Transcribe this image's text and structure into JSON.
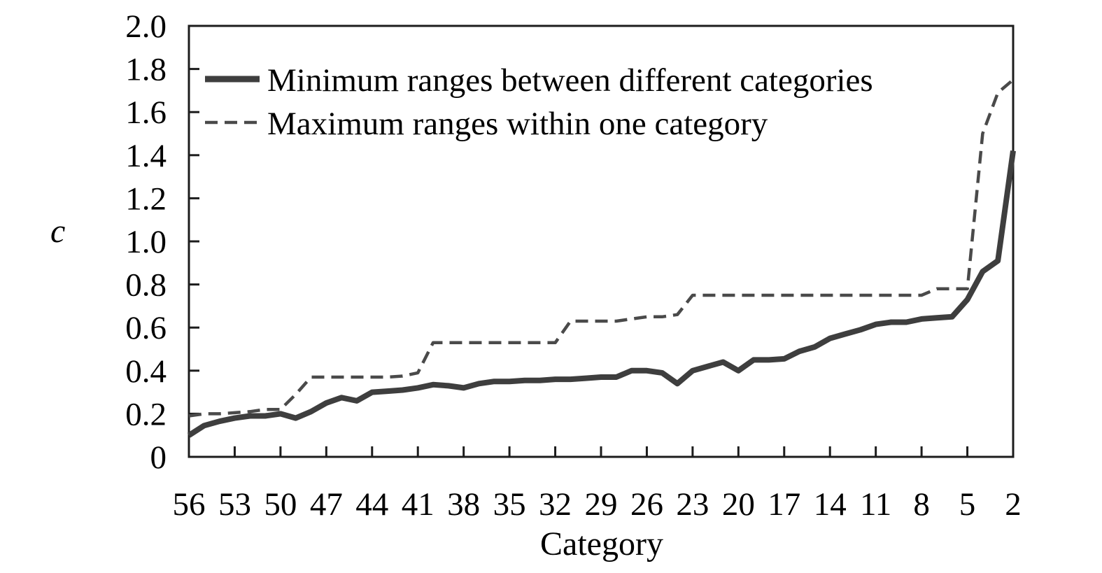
{
  "figure": {
    "background": "#ffffff",
    "axis_color": "#1c1c1c",
    "text_color": "#000000"
  },
  "chart_data": {
    "type": "line",
    "title": "",
    "xlabel": "Category",
    "ylabel": "c",
    "x_direction": "descending",
    "ylim": [
      0,
      2.0
    ],
    "y_tick_step": 0.2,
    "grid": false,
    "legend_position": "top-left-inside",
    "y_tick_labels": [
      "0",
      "0.2",
      "0.4",
      "0.6",
      "0.8",
      "1.0",
      "1.2",
      "1.4",
      "1.6",
      "1.8",
      "2.0"
    ],
    "x_tick_labels": [
      "56",
      "53",
      "50",
      "47",
      "44",
      "41",
      "38",
      "35",
      "32",
      "29",
      "26",
      "23",
      "20",
      "17",
      "14",
      "11",
      "8",
      "5",
      "2"
    ],
    "categories": [
      56,
      55,
      54,
      53,
      52,
      51,
      50,
      49,
      48,
      47,
      46,
      45,
      44,
      43,
      42,
      41,
      40,
      39,
      38,
      37,
      36,
      35,
      34,
      33,
      32,
      31,
      30,
      29,
      28,
      27,
      26,
      25,
      24,
      23,
      22,
      21,
      20,
      19,
      18,
      17,
      16,
      15,
      14,
      13,
      12,
      11,
      10,
      9,
      8,
      7,
      6,
      5,
      4,
      3,
      2
    ],
    "series": [
      {
        "name": "Minimum ranges between different categories",
        "style": "solid",
        "color": "#3e3e3e",
        "width": 8,
        "values": [
          0.1,
          0.145,
          0.165,
          0.18,
          0.19,
          0.19,
          0.2,
          0.18,
          0.21,
          0.25,
          0.275,
          0.26,
          0.3,
          0.305,
          0.31,
          0.32,
          0.335,
          0.33,
          0.32,
          0.34,
          0.35,
          0.35,
          0.355,
          0.355,
          0.36,
          0.36,
          0.365,
          0.37,
          0.37,
          0.4,
          0.4,
          0.39,
          0.34,
          0.4,
          0.42,
          0.44,
          0.4,
          0.45,
          0.45,
          0.455,
          0.49,
          0.51,
          0.55,
          0.57,
          0.59,
          0.615,
          0.625,
          0.625,
          0.64,
          0.645,
          0.65,
          0.73,
          0.86,
          0.91,
          1.42
        ]
      },
      {
        "name": "Maximum ranges within one category",
        "style": "dashed",
        "color": "#4a4a4a",
        "width": 4.5,
        "values": [
          0.19,
          0.2,
          0.2,
          0.205,
          0.21,
          0.22,
          0.22,
          0.29,
          0.37,
          0.37,
          0.37,
          0.37,
          0.37,
          0.37,
          0.375,
          0.39,
          0.53,
          0.53,
          0.53,
          0.53,
          0.53,
          0.53,
          0.53,
          0.53,
          0.53,
          0.63,
          0.63,
          0.63,
          0.63,
          0.64,
          0.65,
          0.65,
          0.66,
          0.75,
          0.75,
          0.75,
          0.75,
          0.75,
          0.75,
          0.75,
          0.75,
          0.75,
          0.75,
          0.75,
          0.75,
          0.75,
          0.75,
          0.75,
          0.75,
          0.78,
          0.78,
          0.78,
          1.5,
          1.69,
          1.75
        ]
      }
    ]
  }
}
